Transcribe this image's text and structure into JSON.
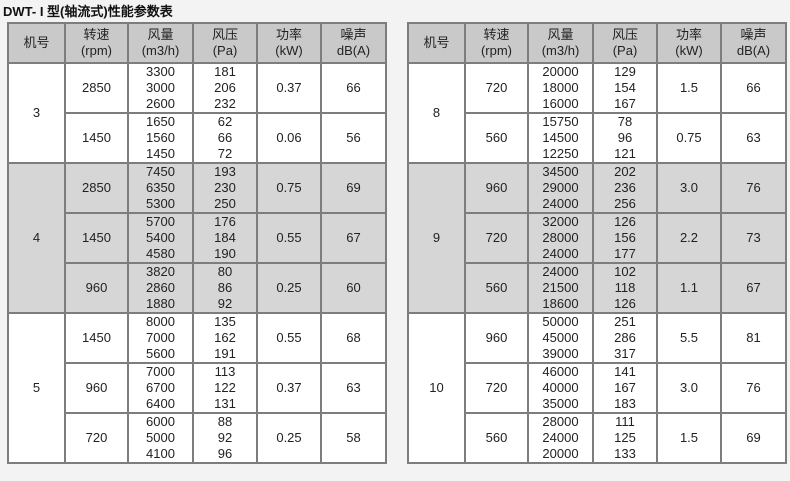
{
  "title": "DWT- I 型(轴流式)性能参数表",
  "headers": [
    {
      "l1": "机号",
      "l2": ""
    },
    {
      "l1": "转速",
      "l2": "(rpm)"
    },
    {
      "l1": "风量",
      "l2": "(m3/h)"
    },
    {
      "l1": "风压",
      "l2": "(Pa)"
    },
    {
      "l1": "功率",
      "l2": "(kW)"
    },
    {
      "l1": "噪声",
      "l2": "dB(A)"
    }
  ],
  "colors": {
    "header_bg": "#c9c9c9",
    "shaded_bg": "#d6d6d6",
    "border": "#7d7d7d"
  },
  "tables": [
    [
      {
        "machine": "3",
        "shaded": false,
        "rows": [
          {
            "rpm": "2850",
            "flow": [
              "3300",
              "3000",
              "2600"
            ],
            "pressure": [
              "181",
              "206",
              "232"
            ],
            "power": "0.37",
            "noise": "66"
          },
          {
            "rpm": "1450",
            "flow": [
              "1650",
              "1560",
              "1450"
            ],
            "pressure": [
              "62",
              "66",
              "72"
            ],
            "power": "0.06",
            "noise": "56"
          }
        ]
      },
      {
        "machine": "4",
        "shaded": true,
        "rows": [
          {
            "rpm": "2850",
            "flow": [
              "7450",
              "6350",
              "5300"
            ],
            "pressure": [
              "193",
              "230",
              "250"
            ],
            "power": "0.75",
            "noise": "69"
          },
          {
            "rpm": "1450",
            "flow": [
              "5700",
              "5400",
              "4580"
            ],
            "pressure": [
              "176",
              "184",
              "190"
            ],
            "power": "0.55",
            "noise": "67"
          },
          {
            "rpm": "960",
            "flow": [
              "3820",
              "2860",
              "1880"
            ],
            "pressure": [
              "80",
              "86",
              "92"
            ],
            "power": "0.25",
            "noise": "60"
          }
        ]
      },
      {
        "machine": "5",
        "shaded": false,
        "rows": [
          {
            "rpm": "1450",
            "flow": [
              "8000",
              "7000",
              "5600"
            ],
            "pressure": [
              "135",
              "162",
              "191"
            ],
            "power": "0.55",
            "noise": "68"
          },
          {
            "rpm": "960",
            "flow": [
              "7000",
              "6700",
              "6400"
            ],
            "pressure": [
              "113",
              "122",
              "131"
            ],
            "power": "0.37",
            "noise": "63"
          },
          {
            "rpm": "720",
            "flow": [
              "6000",
              "5000",
              "4100"
            ],
            "pressure": [
              "88",
              "92",
              "96"
            ],
            "power": "0.25",
            "noise": "58"
          }
        ]
      }
    ],
    [
      {
        "machine": "8",
        "shaded": false,
        "rows": [
          {
            "rpm": "720",
            "flow": [
              "20000",
              "18000",
              "16000"
            ],
            "pressure": [
              "129",
              "154",
              "167"
            ],
            "power": "1.5",
            "noise": "66"
          },
          {
            "rpm": "560",
            "flow": [
              "15750",
              "14500",
              "12250"
            ],
            "pressure": [
              "78",
              "96",
              "121"
            ],
            "power": "0.75",
            "noise": "63"
          }
        ]
      },
      {
        "machine": "9",
        "shaded": true,
        "rows": [
          {
            "rpm": "960",
            "flow": [
              "34500",
              "29000",
              "24000"
            ],
            "pressure": [
              "202",
              "236",
              "256"
            ],
            "power": "3.0",
            "noise": "76"
          },
          {
            "rpm": "720",
            "flow": [
              "32000",
              "28000",
              "24000"
            ],
            "pressure": [
              "126",
              "156",
              "177"
            ],
            "power": "2.2",
            "noise": "73"
          },
          {
            "rpm": "560",
            "flow": [
              "24000",
              "21500",
              "18600"
            ],
            "pressure": [
              "102",
              "118",
              "126"
            ],
            "power": "1.1",
            "noise": "67"
          }
        ]
      },
      {
        "machine": "10",
        "shaded": false,
        "rows": [
          {
            "rpm": "960",
            "flow": [
              "50000",
              "45000",
              "39000"
            ],
            "pressure": [
              "251",
              "286",
              "317"
            ],
            "power": "5.5",
            "noise": "81"
          },
          {
            "rpm": "720",
            "flow": [
              "46000",
              "40000",
              "35000"
            ],
            "pressure": [
              "141",
              "167",
              "183"
            ],
            "power": "3.0",
            "noise": "76"
          },
          {
            "rpm": "560",
            "flow": [
              "28000",
              "24000",
              "20000"
            ],
            "pressure": [
              "111",
              "125",
              "133"
            ],
            "power": "1.5",
            "noise": "69"
          }
        ]
      }
    ]
  ]
}
